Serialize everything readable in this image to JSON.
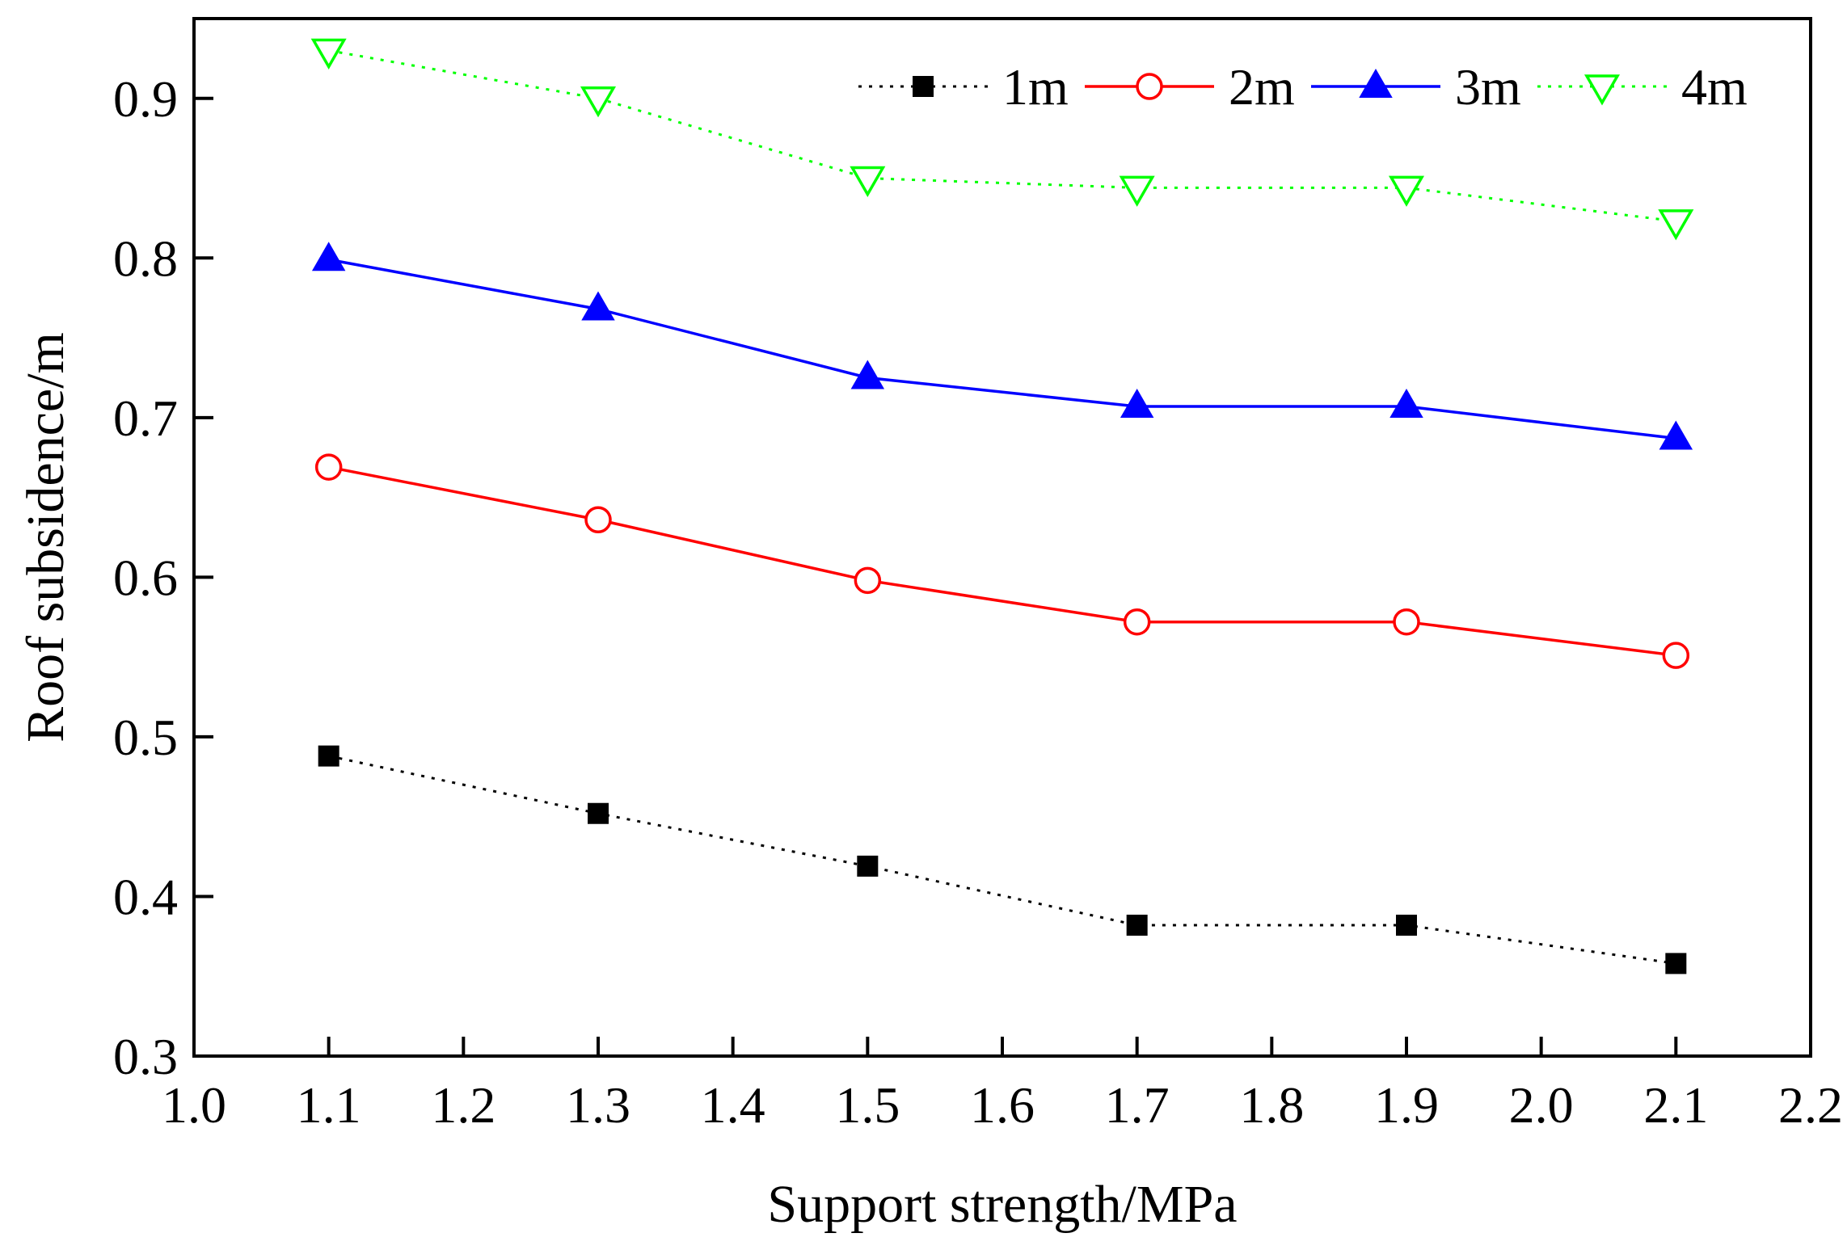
{
  "chart_data": {
    "type": "line",
    "title": "",
    "xlabel": "Support strength/MPa",
    "ylabel": "Roof subsidence/m",
    "xlim": [
      1.0,
      2.2
    ],
    "ylim": [
      0.3,
      0.95
    ],
    "x_ticks": [
      "1.0",
      "1.1",
      "1.2",
      "1.3",
      "1.4",
      "1.5",
      "1.6",
      "1.7",
      "1.8",
      "1.9",
      "2.0",
      "2.1",
      "2.2"
    ],
    "y_ticks": [
      "0.3",
      "0.4",
      "0.5",
      "0.6",
      "0.7",
      "0.8",
      "0.9"
    ],
    "x": [
      1.1,
      1.3,
      1.5,
      1.7,
      1.9,
      2.1
    ],
    "grid": false,
    "legend_position": "top-right",
    "series": [
      {
        "name": "1m",
        "values": [
          0.488,
          0.452,
          0.419,
          0.382,
          0.382,
          0.358
        ],
        "color": "#000000",
        "line": "dotted",
        "marker": "filled-square"
      },
      {
        "name": "2m",
        "values": [
          0.669,
          0.636,
          0.598,
          0.572,
          0.572,
          0.551
        ],
        "color": "#ff0000",
        "line": "solid",
        "marker": "open-circle"
      },
      {
        "name": "3m",
        "values": [
          0.799,
          0.768,
          0.725,
          0.707,
          0.707,
          0.687
        ],
        "color": "#0000ff",
        "line": "solid",
        "marker": "filled-triangle-up"
      },
      {
        "name": "4m",
        "values": [
          0.93,
          0.9,
          0.85,
          0.844,
          0.844,
          0.823
        ],
        "color": "#00ff00",
        "line": "dotted",
        "marker": "open-triangle-down"
      }
    ]
  }
}
